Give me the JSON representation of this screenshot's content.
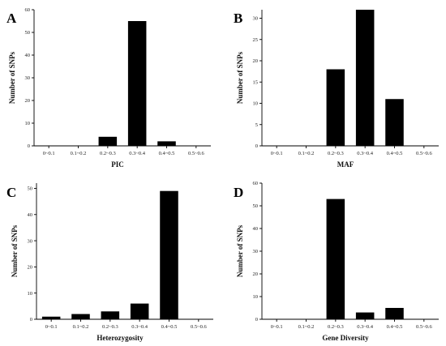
{
  "chart_data": [
    {
      "panel": "A",
      "type": "bar",
      "categories": [
        "0~0.1",
        "0.1~0.2",
        "0.2~0.3",
        "0.3~0.4",
        "0.4~0.5",
        "0.5~0.6"
      ],
      "values": [
        0,
        0,
        4,
        55,
        2,
        0
      ],
      "xlabel": "PIC",
      "ylabel": "Number of SNPs",
      "ylim": [
        0,
        60
      ],
      "yticks": [
        0,
        10,
        20,
        30,
        40,
        50,
        60
      ]
    },
    {
      "panel": "B",
      "type": "bar",
      "categories": [
        "0~0.1",
        "0.1~0.2",
        "0.2~0.3",
        "0.3~0.4",
        "0.4~0.5",
        "0.5~0.6"
      ],
      "values": [
        0,
        0,
        18,
        32,
        11,
        0
      ],
      "xlabel": "MAF",
      "ylabel": "Number of SNPs",
      "ylim": [
        0,
        32
      ],
      "yticks": [
        0,
        5,
        10,
        15,
        20,
        25,
        30
      ]
    },
    {
      "panel": "C",
      "type": "bar",
      "categories": [
        "0~0.1",
        "0.1~0.2",
        "0.2~0.3",
        "0.3~0.4",
        "0.4~0.5",
        "0.5~0.6"
      ],
      "values": [
        1,
        2,
        3,
        6,
        49,
        0
      ],
      "xlabel": "Heterozygosity",
      "ylabel": "Number of SNPs",
      "ylim": [
        0,
        52
      ],
      "yticks": [
        0,
        10,
        20,
        30,
        40,
        50
      ]
    },
    {
      "panel": "D",
      "type": "bar",
      "categories": [
        "0~0.1",
        "0.1~0.2",
        "0.2~0.3",
        "0.3~0.4",
        "0.4~0.5",
        "0.5~0.6"
      ],
      "values": [
        0,
        0,
        53,
        3,
        5,
        0
      ],
      "xlabel": "Gene Diversity",
      "ylabel": "Number of SNPs",
      "ylim": [
        0,
        60
      ],
      "yticks": [
        0,
        10,
        20,
        30,
        40,
        50,
        60
      ]
    }
  ]
}
